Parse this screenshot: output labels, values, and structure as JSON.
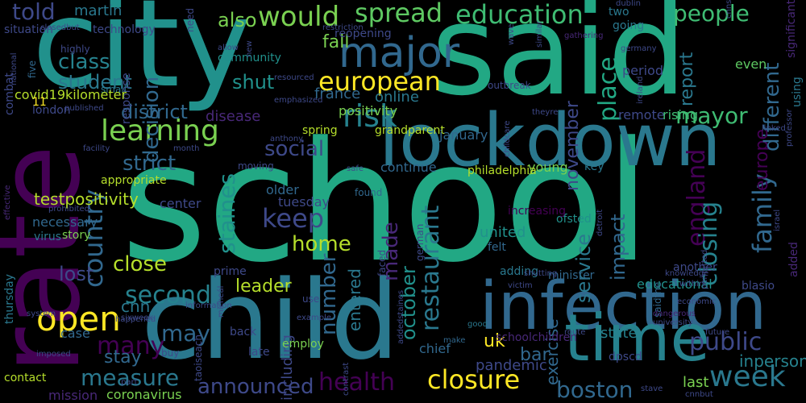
{
  "words": [
    {
      "t": "school",
      "c": "#22a884"
    },
    {
      "t": "city",
      "c": "#21918c"
    },
    {
      "t": "said",
      "c": "#22a884"
    },
    {
      "t": "rate",
      "c": "#440154"
    },
    {
      "t": "child",
      "c": "#2a788e"
    },
    {
      "t": "lockdown",
      "c": "#2a788e"
    },
    {
      "t": "infection",
      "c": "#31688e"
    },
    {
      "t": "time",
      "c": "#26828e"
    },
    {
      "t": "major",
      "c": "#31688e"
    },
    {
      "t": "learning",
      "c": "#7ad151"
    },
    {
      "t": "european",
      "c": "#fde725"
    },
    {
      "t": "spread",
      "c": "#5ec962"
    },
    {
      "t": "education",
      "c": "#3fbc73"
    },
    {
      "t": "would",
      "c": "#7ad151"
    },
    {
      "t": "people",
      "c": "#3fbc73"
    },
    {
      "t": "told",
      "c": "#3e4989"
    },
    {
      "t": "class",
      "c": "#26828e"
    },
    {
      "t": "student",
      "c": "#2a788e"
    },
    {
      "t": "district",
      "c": "#31688e"
    },
    {
      "t": "risk",
      "c": "#26828e"
    },
    {
      "t": "social",
      "c": "#3e4989"
    },
    {
      "t": "strict",
      "c": "#31688e"
    },
    {
      "t": "keep",
      "c": "#3e4989"
    },
    {
      "t": "country",
      "c": "#31688e"
    },
    {
      "t": "open",
      "c": "#fde725"
    },
    {
      "t": "second",
      "c": "#26828e"
    },
    {
      "t": "close",
      "c": "#b5de2b"
    },
    {
      "t": "lost",
      "c": "#3e4989"
    },
    {
      "t": "home",
      "c": "#b5de2b"
    },
    {
      "t": "many",
      "c": "#440154"
    },
    {
      "t": "may",
      "c": "#31688e"
    },
    {
      "t": "measure",
      "c": "#2a788e"
    },
    {
      "t": "announced",
      "c": "#3e4989"
    },
    {
      "t": "health",
      "c": "#440154"
    },
    {
      "t": "closure",
      "c": "#fde725"
    },
    {
      "t": "week",
      "c": "#2a788e"
    },
    {
      "t": "public",
      "c": "#3e4989"
    },
    {
      "t": "boston",
      "c": "#31688e"
    },
    {
      "t": "family",
      "c": "#31688e"
    },
    {
      "t": "europe",
      "c": "#440154"
    },
    {
      "t": "england",
      "c": "#440154"
    },
    {
      "t": "different",
      "c": "#31688e"
    },
    {
      "t": "closing",
      "c": "#26828e"
    },
    {
      "t": "restaurant",
      "c": "#2a788e"
    },
    {
      "t": "place",
      "c": "#22a884"
    },
    {
      "t": "decision",
      "c": "#31688e"
    },
    {
      "t": "staines",
      "c": "#21918c"
    },
    {
      "t": "made",
      "c": "#482878"
    },
    {
      "t": "number",
      "c": "#31688e"
    },
    {
      "t": "mayor",
      "c": "#3fbc73"
    },
    {
      "t": "report",
      "c": "#2a788e"
    },
    {
      "t": "november",
      "c": "#3e4989"
    },
    {
      "t": "shut",
      "c": "#21918c"
    },
    {
      "t": "also",
      "c": "#7ad151"
    },
    {
      "t": "fall",
      "c": "#7ad151"
    },
    {
      "t": "martin",
      "c": "#2a788e"
    },
    {
      "t": "leader",
      "c": "#b5de2b"
    },
    {
      "t": "uk",
      "c": "#fde725"
    },
    {
      "t": "bar",
      "c": "#31688e"
    },
    {
      "t": "inperson",
      "c": "#26828e"
    },
    {
      "t": "last",
      "c": "#7ad151"
    },
    {
      "t": "october",
      "c": "#21918c"
    },
    {
      "t": "entered",
      "c": "#2a788e"
    },
    {
      "t": "impact",
      "c": "#31688e"
    },
    {
      "t": "service",
      "c": "#2a788e"
    },
    {
      "t": "united",
      "c": "#21918c"
    },
    {
      "t": "exercise",
      "c": "#31688e"
    },
    {
      "t": "pandemic",
      "c": "#3e4989"
    },
    {
      "t": "stay",
      "c": "#31688e"
    },
    {
      "t": "cnn",
      "c": "#2a788e"
    },
    {
      "t": "state",
      "c": "#26828e"
    },
    {
      "t": "chief",
      "c": "#31688e"
    },
    {
      "t": "including",
      "c": "#3e4989"
    },
    {
      "t": "coronavirus",
      "c": "#7ad151"
    },
    {
      "t": "mission",
      "c": "#482878"
    },
    {
      "t": "contact",
      "c": "#b5de2b"
    },
    {
      "t": "thursday",
      "c": "#2a788e"
    },
    {
      "t": "testpositivity",
      "c": "#b5de2b"
    },
    {
      "t": "necessary",
      "c": "#31688e"
    },
    {
      "t": "virus",
      "c": "#2a788e"
    },
    {
      "t": "case",
      "c": "#31688e"
    },
    {
      "t": "center",
      "c": "#3e4989"
    },
    {
      "t": "tuesday",
      "c": "#3e4989"
    },
    {
      "t": "appropriate",
      "c": "#b5de2b"
    },
    {
      "t": "older",
      "c": "#31688e"
    },
    {
      "t": "disease",
      "c": "#482878"
    },
    {
      "t": "france",
      "c": "#31688e"
    },
    {
      "t": "positivity",
      "c": "#7ad151"
    },
    {
      "t": "young",
      "c": "#7ad151"
    },
    {
      "t": "philadelphia",
      "c": "#b5de2b"
    },
    {
      "t": "continue",
      "c": "#31688e"
    },
    {
      "t": "online",
      "c": "#2a788e"
    },
    {
      "t": "reopening",
      "c": "#3e4989"
    },
    {
      "t": "community",
      "c": "#21918c"
    },
    {
      "t": "response",
      "c": "#3e4989"
    },
    {
      "t": "technology",
      "c": "#3e4989"
    },
    {
      "t": "situation",
      "c": "#3e4989"
    },
    {
      "t": "period",
      "c": "#3e4989"
    },
    {
      "t": "two",
      "c": "#2a788e"
    },
    {
      "t": "going",
      "c": "#2a788e"
    },
    {
      "t": "remote",
      "c": "#3e4989"
    },
    {
      "t": "rising",
      "c": "#3fbc73"
    },
    {
      "t": "even",
      "c": "#5ec962"
    },
    {
      "t": "using",
      "c": "#2a788e"
    },
    {
      "t": "significant",
      "c": "#482878"
    },
    {
      "t": "spring",
      "c": "#b5de2b"
    },
    {
      "t": "grandparent",
      "c": "#b5de2b"
    },
    {
      "t": "january",
      "c": "#31688e"
    },
    {
      "t": "key",
      "c": "#2a788e"
    },
    {
      "t": "ofsted",
      "c": "#21918c"
    },
    {
      "t": "increasing",
      "c": "#440154"
    },
    {
      "t": "felt",
      "c": "#31688e"
    },
    {
      "t": "adding",
      "c": "#2a788e"
    },
    {
      "t": "german",
      "c": "#3e4989"
    },
    {
      "t": "minister",
      "c": "#31688e"
    },
    {
      "t": "educational",
      "c": "#21918c"
    },
    {
      "t": "blasio",
      "c": "#3e4989"
    },
    {
      "t": "saidthe",
      "c": "#31688e"
    },
    {
      "t": "added",
      "c": "#482878"
    },
    {
      "t": "dpscd",
      "c": "#3e4989"
    },
    {
      "t": "schoolchildren",
      "c": "#482878"
    },
    {
      "t": "make",
      "c": "#31688e"
    },
    {
      "t": "good",
      "c": "#2a788e"
    },
    {
      "t": "employ",
      "c": "#7ad151"
    },
    {
      "t": "late",
      "c": "#3e4989"
    },
    {
      "t": "back",
      "c": "#3e4989"
    },
    {
      "t": "buy",
      "c": "#3e4989"
    },
    {
      "t": "use",
      "c": "#3e4989"
    },
    {
      "t": "prime",
      "c": "#3e4989"
    },
    {
      "t": "story",
      "c": "#7ad151"
    },
    {
      "t": "moving",
      "c": "#3e4989"
    },
    {
      "t": "found",
      "c": "#31688e"
    },
    {
      "t": "safe",
      "c": "#3e4989"
    },
    {
      "t": "faced",
      "c": "#3e4989"
    },
    {
      "t": "highly",
      "c": "#3e4989"
    },
    {
      "t": "small",
      "c": "#2a788e"
    },
    {
      "t": "five",
      "c": "#31688e"
    },
    {
      "t": "combat",
      "c": "#3e4989"
    },
    {
      "t": "london",
      "c": "#3e4989"
    },
    {
      "t": "published",
      "c": "#3e4989"
    },
    {
      "t": "national",
      "c": "#3e4989"
    },
    {
      "t": "allow",
      "c": "#3e4989"
    },
    {
      "t": "emphasized",
      "c": "#3e4989"
    },
    {
      "t": "resourced",
      "c": "#3e4989"
    },
    {
      "t": "outbreak",
      "c": "#3e4989"
    },
    {
      "t": "ireland",
      "c": "#3e4989"
    },
    {
      "t": "germany",
      "c": "#3e4989"
    },
    {
      "t": "gathering",
      "c": "#482878"
    },
    {
      "t": "similar",
      "c": "#3e4989"
    },
    {
      "t": "wave",
      "c": "#3e4989"
    },
    {
      "t": "restriction",
      "c": "#3e4989"
    },
    {
      "t": "closedbut",
      "c": "#3e4989"
    },
    {
      "t": "need",
      "c": "#3e4989"
    },
    {
      "t": "new",
      "c": "#3e4989"
    },
    {
      "t": "dublin",
      "c": "#3e4989"
    },
    {
      "t": "cnns",
      "c": "#3e4989"
    },
    {
      "t": "theyre",
      "c": "#3e4989"
    },
    {
      "t": "childcare",
      "c": "#3e4989"
    },
    {
      "t": "anthony",
      "c": "#3e4989"
    },
    {
      "t": "linked",
      "c": "#3e4989"
    },
    {
      "t": "professor",
      "c": "#3e4989"
    },
    {
      "t": "facility",
      "c": "#3e4989"
    },
    {
      "t": "month",
      "c": "#3e4989"
    },
    {
      "t": "effective",
      "c": "#482878"
    },
    {
      "t": "prohibited",
      "c": "#3e4989"
    },
    {
      "t": "sixweek",
      "c": "#3e4989"
    },
    {
      "t": "information",
      "c": "#3e4989"
    },
    {
      "t": "example",
      "c": "#3e4989"
    },
    {
      "t": "victim",
      "c": "#3e4989"
    },
    {
      "t": "detroit",
      "c": "#3e4989"
    },
    {
      "t": "israel",
      "c": "#3e4989"
    },
    {
      "t": "permitted",
      "c": "#3e4989"
    },
    {
      "t": "knowledge",
      "c": "#3e4989"
    },
    {
      "t": "within",
      "c": "#3e4989"
    },
    {
      "t": "shutting",
      "c": "#3e4989"
    },
    {
      "t": "happened",
      "c": "#3e4989"
    },
    {
      "t": "system",
      "c": "#3e4989"
    },
    {
      "t": "micheál",
      "c": "#3e4989"
    },
    {
      "t": "imposed",
      "c": "#3e4989"
    },
    {
      "t": "part",
      "c": "#3e4989"
    },
    {
      "t": "addedstaines",
      "c": "#3e4989"
    },
    {
      "t": "contrast",
      "c": "#3e4989"
    },
    {
      "t": "route",
      "c": "#3e4989"
    },
    {
      "t": "dangerous",
      "c": "#482878"
    },
    {
      "t": "university",
      "c": "#3e4989"
    },
    {
      "t": "economic",
      "c": "#3e4989"
    },
    {
      "t": "future",
      "c": "#3e4989"
    },
    {
      "t": "stave",
      "c": "#3e4989"
    },
    {
      "t": "cnnbut",
      "c": "#3e4989"
    },
    {
      "t": "another",
      "c": "#3e4989"
    },
    {
      "t": "taoiseach",
      "c": "#3e4989"
    },
    {
      "t": "covid19kilometer",
      "c": "#b5de2b"
    },
    {
      "t": "11",
      "c": "#fde725"
    },
    {
      "t": "28",
      "c": "#3e4989"
    },
    {
      "t": "u",
      "c": "#31688e"
    },
    {
      "t": "5",
      "c": "#b5de2b"
    }
  ]
}
